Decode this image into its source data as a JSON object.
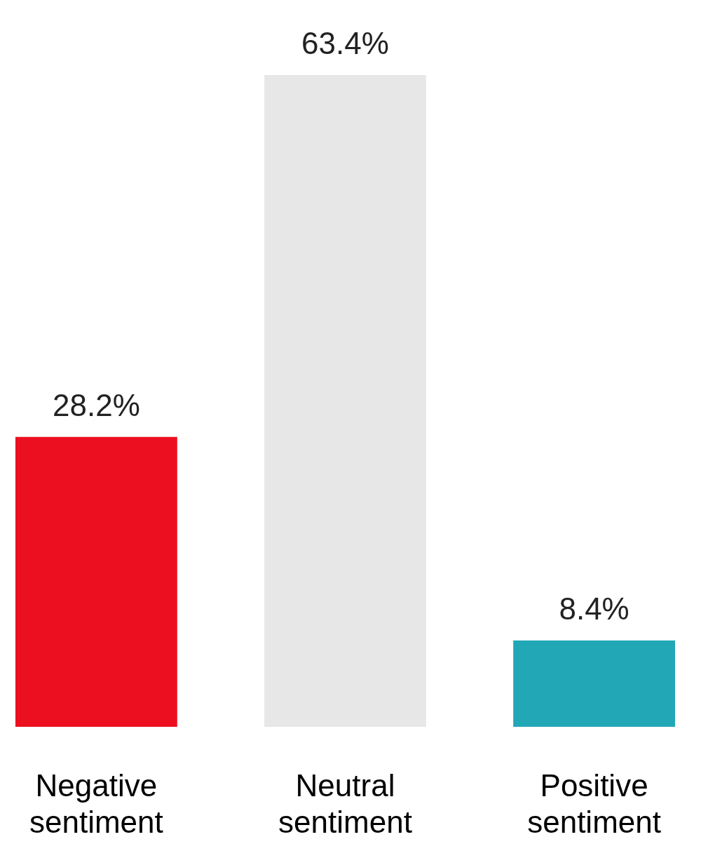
{
  "chart_data": {
    "type": "bar",
    "categories": [
      "Negative sentiment",
      "Neutral sentiment",
      "Positive sentiment"
    ],
    "values": [
      28.2,
      63.4,
      8.4
    ],
    "colors": [
      "#ec0f1f",
      "#e7e7e7",
      "#22a7b6"
    ],
    "value_labels": [
      "28.2%",
      "63.4%",
      "8.4%"
    ],
    "relative": false
  }
}
